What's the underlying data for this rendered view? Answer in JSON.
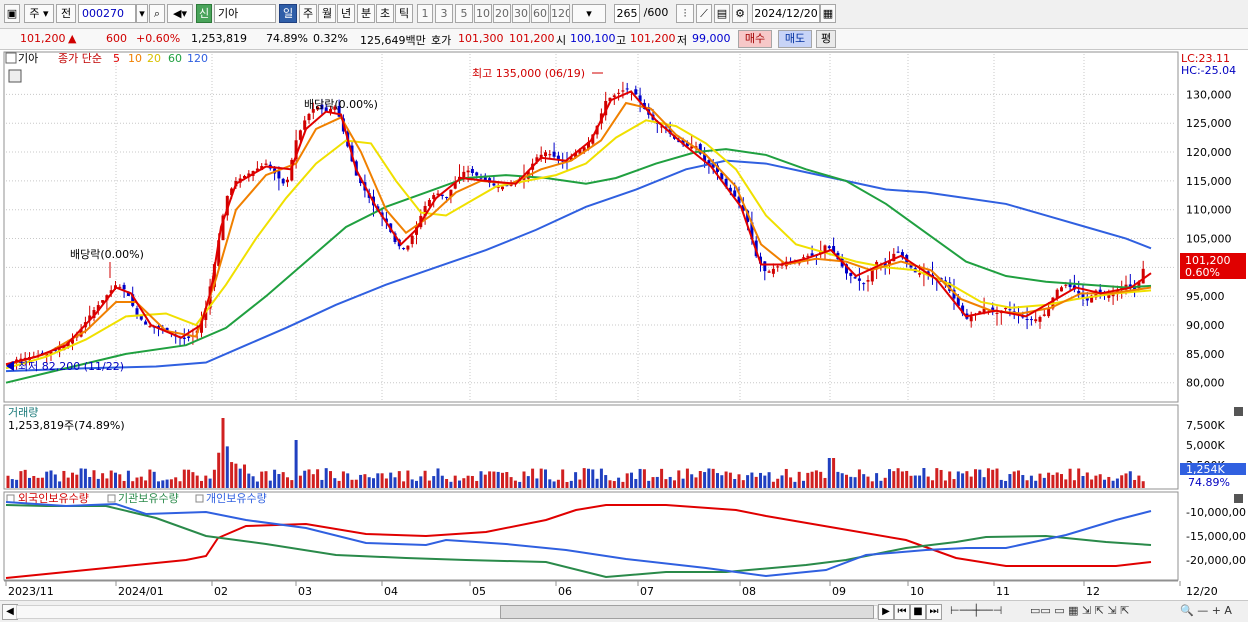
{
  "toolbar": {
    "period_label": "주",
    "prev_label": "전",
    "code": "000270",
    "badge": "신",
    "name": "기아",
    "periods": [
      "일",
      "주",
      "월",
      "년",
      "분",
      "초",
      "틱"
    ],
    "intervals": [
      "1",
      "3",
      "5",
      "10",
      "20",
      "30",
      "60",
      "120"
    ],
    "count_label": "265",
    "count_total": "/600",
    "date": "2024/12/20"
  },
  "info": {
    "price": "101,200",
    "arrow": "▲",
    "change": "600",
    "change_pct": "+0.60%",
    "volume": "1,253,819",
    "volume_ratio": "74.89%",
    "turnover": "0.32%",
    "amount": "125,649백만",
    "quote_label": "호가",
    "ask": "101,300",
    "bid": "101,200",
    "open_label": "시",
    "open": "100,100",
    "high_label": "고",
    "high": "101,200",
    "low_label": "저",
    "low": "99,000",
    "buy_btn": "매수",
    "sell_btn": "매도",
    "eval_btn": "평"
  },
  "legend": {
    "stock_name": "기아",
    "ma_prefix": "종가 단순",
    "ma": [
      {
        "label": "5",
        "color": "#e00000"
      },
      {
        "label": "10",
        "color": "#f08000"
      },
      {
        "label": "20",
        "color": "#f0e000"
      },
      {
        "label": "60",
        "color": "#20a040"
      },
      {
        "label": "120",
        "color": "#3060e0"
      }
    ],
    "lc": "LC:23.11",
    "hc": "HC:-25.04"
  },
  "annotations": {
    "high_label": "최고 135,000 (06/19)",
    "low_label": "최저 82,200 (11/22)",
    "div1": "배당락(0.00%)",
    "div2": "배당락(0.00%)",
    "price_tag": "101,200",
    "pct_tag": "0.60%"
  },
  "volume_panel": {
    "title": "거래량",
    "subtitle": "1,253,819주(74.89%)",
    "ticks": [
      "7,500K",
      "5,000K",
      "2,500K"
    ],
    "tag": "1,254K",
    "tag_pct": "74.89%"
  },
  "holdings_panel": {
    "foreign": "외국인보유수량",
    "institution": "기관보유수량",
    "individual": "개인보유수량",
    "ticks": [
      "-10,000,00",
      "-15,000,00",
      "-20,000,00"
    ]
  },
  "chart_data": {
    "type": "candlestick",
    "y_ticks": [
      "130,000",
      "125,000",
      "120,000",
      "115,000",
      "110,000",
      "105,000",
      "100,000",
      "95,000",
      "90,000",
      "85,000",
      "80,000"
    ],
    "ylim": [
      77000,
      137000
    ],
    "x_labels": [
      "2023/11",
      "2024/01",
      "02",
      "03",
      "04",
      "05",
      "06",
      "07",
      "08",
      "09",
      "10",
      "11",
      "12",
      "12/20"
    ],
    "close_series": [
      [
        0,
        83000
      ],
      [
        10,
        84000
      ],
      [
        25,
        84500
      ],
      [
        40,
        85000
      ],
      [
        55,
        86000
      ],
      [
        70,
        88000
      ],
      [
        85,
        92000
      ],
      [
        100,
        95000
      ],
      [
        110,
        97000
      ],
      [
        120,
        96000
      ],
      [
        130,
        92000
      ],
      [
        140,
        90000
      ],
      [
        150,
        89500
      ],
      [
        160,
        89000
      ],
      [
        170,
        88000
      ],
      [
        180,
        87500
      ],
      [
        190,
        88500
      ],
      [
        200,
        93000
      ],
      [
        210,
        102000
      ],
      [
        220,
        112000
      ],
      [
        230,
        115000
      ],
      [
        240,
        116000
      ],
      [
        250,
        117000
      ],
      [
        260,
        118000
      ],
      [
        270,
        116000
      ],
      [
        280,
        114000
      ],
      [
        290,
        122000
      ],
      [
        300,
        126000
      ],
      [
        310,
        128000
      ],
      [
        320,
        127000
      ],
      [
        330,
        128000
      ],
      [
        340,
        122000
      ],
      [
        350,
        116000
      ],
      [
        360,
        113000
      ],
      [
        370,
        110000
      ],
      [
        380,
        108000
      ],
      [
        390,
        104000
      ],
      [
        400,
        103000
      ],
      [
        410,
        107000
      ],
      [
        420,
        111000
      ],
      [
        430,
        113000
      ],
      [
        440,
        112000
      ],
      [
        450,
        115000
      ],
      [
        460,
        117000
      ],
      [
        470,
        116000
      ],
      [
        480,
        115000
      ],
      [
        490,
        114000
      ],
      [
        500,
        114000
      ],
      [
        510,
        115000
      ],
      [
        520,
        116000
      ],
      [
        530,
        119000
      ],
      [
        540,
        120000
      ],
      [
        550,
        119000
      ],
      [
        560,
        118000
      ],
      [
        570,
        120000
      ],
      [
        580,
        121000
      ],
      [
        590,
        124000
      ],
      [
        600,
        129000
      ],
      [
        610,
        130000
      ],
      [
        620,
        131000
      ],
      [
        630,
        130000
      ],
      [
        640,
        127000
      ],
      [
        650,
        125000
      ],
      [
        660,
        124000
      ],
      [
        670,
        122000
      ],
      [
        680,
        121000
      ],
      [
        690,
        121000
      ],
      [
        700,
        118000
      ],
      [
        710,
        117000
      ],
      [
        720,
        114000
      ],
      [
        730,
        112000
      ],
      [
        740,
        109000
      ],
      [
        750,
        102000
      ],
      [
        760,
        99000
      ],
      [
        770,
        100000
      ],
      [
        780,
        101000
      ],
      [
        790,
        101000
      ],
      [
        800,
        102000
      ],
      [
        810,
        102000
      ],
      [
        820,
        104000
      ],
      [
        830,
        102000
      ],
      [
        840,
        99000
      ],
      [
        850,
        98000
      ],
      [
        860,
        97000
      ],
      [
        870,
        101000
      ],
      [
        880,
        100000
      ],
      [
        890,
        103000
      ],
      [
        900,
        101000
      ],
      [
        910,
        99000
      ],
      [
        920,
        99000
      ],
      [
        930,
        98000
      ],
      [
        940,
        97000
      ],
      [
        950,
        94000
      ],
      [
        960,
        91000
      ],
      [
        970,
        92000
      ],
      [
        980,
        93000
      ],
      [
        990,
        92000
      ],
      [
        1000,
        93000
      ],
      [
        1010,
        92000
      ],
      [
        1020,
        91000
      ],
      [
        1030,
        91000
      ],
      [
        1040,
        92000
      ],
      [
        1050,
        96000
      ],
      [
        1060,
        97000
      ],
      [
        1070,
        96000
      ],
      [
        1080,
        94000
      ],
      [
        1090,
        96000
      ],
      [
        1100,
        95000
      ],
      [
        1110,
        96000
      ],
      [
        1120,
        97000
      ],
      [
        1130,
        96000
      ],
      [
        1140,
        101200
      ]
    ],
    "ma5": [
      [
        0,
        83200
      ],
      [
        30,
        84500
      ],
      [
        60,
        86500
      ],
      [
        90,
        92000
      ],
      [
        110,
        96500
      ],
      [
        125,
        95500
      ],
      [
        145,
        90000
      ],
      [
        175,
        87800
      ],
      [
        195,
        90000
      ],
      [
        205,
        96000
      ],
      [
        215,
        107000
      ],
      [
        230,
        114500
      ],
      [
        260,
        117500
      ],
      [
        285,
        117000
      ],
      [
        300,
        124000
      ],
      [
        320,
        127000
      ],
      [
        335,
        126500
      ],
      [
        350,
        117000
      ],
      [
        370,
        110500
      ],
      [
        395,
        104000
      ],
      [
        410,
        106500
      ],
      [
        430,
        112000
      ],
      [
        455,
        115500
      ],
      [
        480,
        115000
      ],
      [
        510,
        114500
      ],
      [
        535,
        119000
      ],
      [
        560,
        118500
      ],
      [
        585,
        122000
      ],
      [
        605,
        129000
      ],
      [
        625,
        130500
      ],
      [
        650,
        125500
      ],
      [
        680,
        121000
      ],
      [
        705,
        117500
      ],
      [
        735,
        110500
      ],
      [
        755,
        100500
      ],
      [
        775,
        100500
      ],
      [
        800,
        101500
      ],
      [
        825,
        103000
      ],
      [
        850,
        98500
      ],
      [
        875,
        100500
      ],
      [
        895,
        102000
      ],
      [
        930,
        98000
      ],
      [
        960,
        91500
      ],
      [
        990,
        92500
      ],
      [
        1020,
        91500
      ],
      [
        1045,
        94000
      ],
      [
        1070,
        96500
      ],
      [
        1095,
        95500
      ],
      [
        1125,
        96500
      ],
      [
        1145,
        99000
      ]
    ],
    "ma10": [
      [
        0,
        83000
      ],
      [
        40,
        85000
      ],
      [
        80,
        89000
      ],
      [
        110,
        94000
      ],
      [
        130,
        94000
      ],
      [
        160,
        89000
      ],
      [
        190,
        88000
      ],
      [
        210,
        98000
      ],
      [
        230,
        110000
      ],
      [
        260,
        116000
      ],
      [
        290,
        118000
      ],
      [
        310,
        124000
      ],
      [
        335,
        126000
      ],
      [
        355,
        120000
      ],
      [
        380,
        110000
      ],
      [
        400,
        106000
      ],
      [
        425,
        109000
      ],
      [
        450,
        113000
      ],
      [
        475,
        115000
      ],
      [
        505,
        114500
      ],
      [
        535,
        117000
      ],
      [
        565,
        118500
      ],
      [
        595,
        122000
      ],
      [
        620,
        128500
      ],
      [
        645,
        127500
      ],
      [
        670,
        123000
      ],
      [
        700,
        119500
      ],
      [
        730,
        114000
      ],
      [
        755,
        104000
      ],
      [
        780,
        100500
      ],
      [
        810,
        101500
      ],
      [
        840,
        101000
      ],
      [
        865,
        99500
      ],
      [
        895,
        101000
      ],
      [
        925,
        99500
      ],
      [
        955,
        94500
      ],
      [
        985,
        92500
      ],
      [
        1015,
        92000
      ],
      [
        1045,
        93000
      ],
      [
        1075,
        95500
      ],
      [
        1105,
        95500
      ],
      [
        1145,
        96500
      ]
    ],
    "ma20": [
      [
        0,
        82500
      ],
      [
        40,
        84500
      ],
      [
        80,
        87500
      ],
      [
        120,
        91500
      ],
      [
        160,
        92000
      ],
      [
        190,
        90000
      ],
      [
        220,
        97000
      ],
      [
        250,
        105000
      ],
      [
        280,
        112000
      ],
      [
        310,
        118000
      ],
      [
        340,
        122000
      ],
      [
        365,
        121500
      ],
      [
        390,
        115000
      ],
      [
        415,
        109500
      ],
      [
        440,
        109000
      ],
      [
        465,
        111500
      ],
      [
        490,
        114000
      ],
      [
        520,
        115000
      ],
      [
        550,
        116000
      ],
      [
        580,
        118000
      ],
      [
        610,
        122500
      ],
      [
        640,
        125500
      ],
      [
        670,
        124500
      ],
      [
        700,
        121500
      ],
      [
        730,
        117000
      ],
      [
        760,
        109000
      ],
      [
        790,
        104000
      ],
      [
        820,
        102500
      ],
      [
        850,
        101000
      ],
      [
        880,
        100000
      ],
      [
        910,
        99500
      ],
      [
        945,
        97000
      ],
      [
        975,
        94000
      ],
      [
        1005,
        93000
      ],
      [
        1040,
        93500
      ],
      [
        1070,
        94500
      ],
      [
        1110,
        95500
      ],
      [
        1145,
        96000
      ]
    ],
    "ma60": [
      [
        0,
        80000
      ],
      [
        60,
        82500
      ],
      [
        120,
        85000
      ],
      [
        180,
        86500
      ],
      [
        220,
        89500
      ],
      [
        260,
        95000
      ],
      [
        300,
        101000
      ],
      [
        340,
        107000
      ],
      [
        380,
        110500
      ],
      [
        420,
        113000
      ],
      [
        460,
        115500
      ],
      [
        500,
        116000
      ],
      [
        540,
        115500
      ],
      [
        580,
        114500
      ],
      [
        610,
        115500
      ],
      [
        650,
        118000
      ],
      [
        690,
        120000
      ],
      [
        720,
        120500
      ],
      [
        760,
        119500
      ],
      [
        800,
        117000
      ],
      [
        840,
        115000
      ],
      [
        880,
        111000
      ],
      [
        920,
        106000
      ],
      [
        960,
        101000
      ],
      [
        1000,
        98500
      ],
      [
        1040,
        97500
      ],
      [
        1080,
        97000
      ],
      [
        1120,
        96500
      ],
      [
        1145,
        96800
      ]
    ],
    "ma120": [
      [
        0,
        82000
      ],
      [
        80,
        82500
      ],
      [
        150,
        82800
      ],
      [
        200,
        83500
      ],
      [
        240,
        86500
      ],
      [
        280,
        89500
      ],
      [
        330,
        93500
      ],
      [
        380,
        97000
      ],
      [
        430,
        100000
      ],
      [
        480,
        103000
      ],
      [
        530,
        106500
      ],
      [
        580,
        110500
      ],
      [
        630,
        113500
      ],
      [
        680,
        117000
      ],
      [
        720,
        118500
      ],
      [
        760,
        118000
      ],
      [
        800,
        116500
      ],
      [
        840,
        115000
      ],
      [
        880,
        113500
      ],
      [
        920,
        113000
      ],
      [
        960,
        112000
      ],
      [
        1000,
        111000
      ],
      [
        1040,
        109000
      ],
      [
        1080,
        107000
      ],
      [
        1120,
        105000
      ],
      [
        1145,
        103300
      ]
    ]
  }
}
